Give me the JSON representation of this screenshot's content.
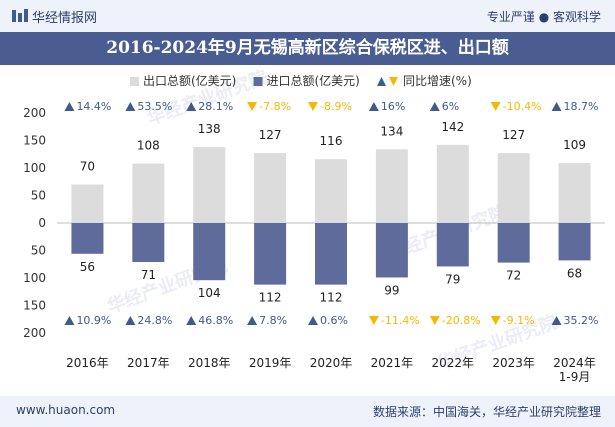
{
  "header": {
    "brand": "华经情报网",
    "slogan": "专业严谨 ● 客观科学"
  },
  "footer": {
    "url": "www.huaon.com",
    "source": "数据来源：中国海关，华经产业研究院整理"
  },
  "watermark": "华经产业研究院",
  "colors": {
    "export_bar": "#dcdcdc",
    "import_bar": "#5e6b9b",
    "up": "#3f5a8c",
    "down": "#f6b800",
    "title_band": "#4a5d92"
  },
  "chart_data": {
    "type": "bar",
    "title": "2016-2024年9月无锡高新区综合保税区进、出口额",
    "categories": [
      "2016年",
      "2017年",
      "2018年",
      "2019年",
      "2020年",
      "2021年",
      "2022年",
      "2023年",
      "2024年\n1-9月"
    ],
    "legend": [
      {
        "label": "出口总额(亿美元)",
        "symbol": "square",
        "color": "#dcdcdc"
      },
      {
        "label": "进口总额(亿美元)",
        "symbol": "square",
        "color": "#5e6b9b"
      },
      {
        "label": "同比增速(%)",
        "symbol": "up-down-triangles"
      }
    ],
    "legend_position": "top",
    "yaxis": {
      "range": [
        -200,
        200
      ],
      "ticks": [
        200,
        150,
        100,
        50,
        0,
        50,
        100,
        150,
        200
      ],
      "note": "exports plotted upward, imports plotted downward; tick labels shown as absolute values"
    },
    "series": [
      {
        "name": "出口总额(亿美元)",
        "direction": "up",
        "values": [
          70,
          108,
          138,
          127,
          116,
          134,
          142,
          127,
          109
        ],
        "growth": [
          "14.4%",
          "53.5%",
          "28.1%",
          "-7.8%",
          "-8.9%",
          "16%",
          "6%",
          "-10.4%",
          "18.7%"
        ]
      },
      {
        "name": "进口总额(亿美元)",
        "direction": "down",
        "values": [
          56,
          71,
          104,
          112,
          112,
          99,
          79,
          72,
          68
        ],
        "growth": [
          "10.9%",
          "24.8%",
          "46.8%",
          "7.8%",
          "0.6%",
          "-11.4%",
          "-20.8%",
          "-9.1%",
          "35.2%"
        ]
      }
    ],
    "grid": false
  }
}
